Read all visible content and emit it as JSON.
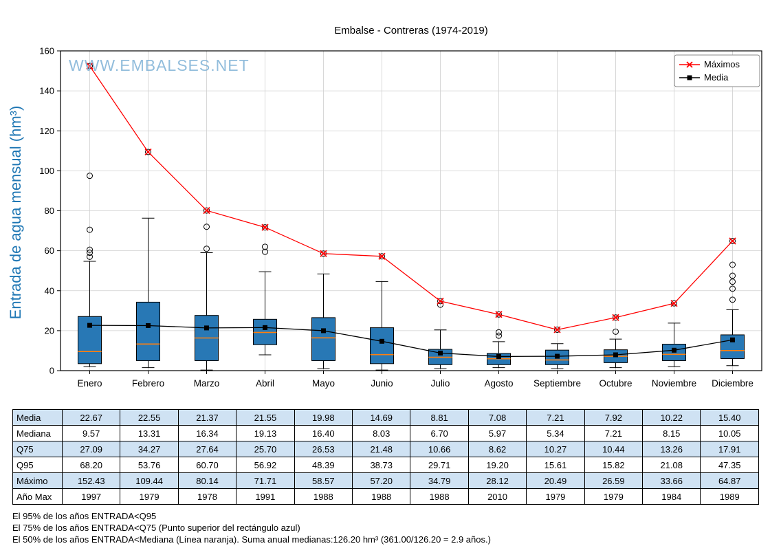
{
  "page": {
    "watermark": "WWW.EMBALSES.NET"
  },
  "chart_data": {
    "type": "boxplot",
    "title": "Embalse - Contreras (1974-2019)",
    "ylabel": "Entrada de agua mensual (hm³)",
    "xlabel": "",
    "ylim": [
      0,
      160
    ],
    "yticks": [
      0,
      20,
      40,
      60,
      80,
      100,
      120,
      140,
      160
    ],
    "grid": true,
    "legend_position": "upper right",
    "categories": [
      "Enero",
      "Febrero",
      "Marzo",
      "Abril",
      "Mayo",
      "Junio",
      "Julio",
      "Agosto",
      "Septiembre",
      "Octubre",
      "Noviembre",
      "Diciembre"
    ],
    "series": [
      {
        "name": "Máximos",
        "type": "line",
        "marker": "x",
        "color": "#ff0000",
        "values": [
          152.43,
          109.44,
          80.14,
          71.71,
          58.57,
          57.2,
          34.79,
          28.12,
          20.49,
          26.59,
          33.66,
          64.87
        ]
      },
      {
        "name": "Media",
        "type": "line",
        "marker": "square",
        "color": "#000000",
        "values": [
          22.67,
          22.55,
          21.37,
          21.55,
          19.98,
          14.69,
          8.81,
          7.08,
          7.21,
          7.92,
          10.22,
          15.4
        ]
      }
    ],
    "boxplot": {
      "box_color": "#2878b5",
      "median_color": "#ff7f0e",
      "median": [
        9.57,
        13.31,
        16.34,
        19.13,
        16.4,
        8.03,
        6.7,
        5.97,
        5.34,
        7.21,
        8.15,
        10.05
      ],
      "q3": [
        27.09,
        34.27,
        27.64,
        25.7,
        26.53,
        21.48,
        10.66,
        8.62,
        10.27,
        10.44,
        13.26,
        17.91
      ],
      "q1": [
        3.5,
        5.0,
        5.0,
        13.0,
        5.0,
        3.5,
        3.0,
        3.0,
        3.0,
        4.0,
        5.0,
        6.0
      ],
      "whisker_low": [
        2.0,
        1.5,
        0.3,
        7.9,
        1.0,
        0.3,
        1.0,
        1.5,
        1.0,
        1.5,
        2.0,
        2.5
      ],
      "whisker_high": [
        54.7,
        76.3,
        59.0,
        49.5,
        48.4,
        44.6,
        20.4,
        14.5,
        13.5,
        15.8,
        23.8,
        30.5
      ],
      "outliers": [
        [
          57.0,
          59.0,
          60.5,
          70.5,
          97.5,
          152.43
        ],
        [
          109.44
        ],
        [
          61.0,
          72.0,
          80.14
        ],
        [
          59.5,
          62.0,
          71.71
        ],
        [
          58.57
        ],
        [
          57.2
        ],
        [
          33.0,
          34.79
        ],
        [
          17.5,
          19.2,
          28.12
        ],
        [
          20.49
        ],
        [
          19.5,
          26.59
        ],
        [
          33.66
        ],
        [
          35.5,
          41.0,
          44.5,
          47.5,
          53.0,
          64.87
        ]
      ]
    }
  },
  "table": {
    "row_labels": [
      "Media",
      "Mediana",
      "Q75",
      "Q95",
      "Máximo",
      "Año Max"
    ],
    "rows": [
      [
        "22.67",
        "22.55",
        "21.37",
        "21.55",
        "19.98",
        "14.69",
        "8.81",
        "7.08",
        "7.21",
        "7.92",
        "10.22",
        "15.40"
      ],
      [
        "9.57",
        "13.31",
        "16.34",
        "19.13",
        "16.40",
        "8.03",
        "6.70",
        "5.97",
        "5.34",
        "7.21",
        "8.15",
        "10.05"
      ],
      [
        "27.09",
        "34.27",
        "27.64",
        "25.70",
        "26.53",
        "21.48",
        "10.66",
        "8.62",
        "10.27",
        "10.44",
        "13.26",
        "17.91"
      ],
      [
        "68.20",
        "53.76",
        "60.70",
        "56.92",
        "48.39",
        "38.73",
        "29.71",
        "19.20",
        "15.61",
        "15.82",
        "21.08",
        "47.35"
      ],
      [
        "152.43",
        "109.44",
        "80.14",
        "71.71",
        "58.57",
        "57.20",
        "34.79",
        "28.12",
        "20.49",
        "26.59",
        "33.66",
        "64.87"
      ],
      [
        "1997",
        "1979",
        "1978",
        "1991",
        "1988",
        "1988",
        "1988",
        "2010",
        "1979",
        "1979",
        "1984",
        "1989"
      ]
    ],
    "shaded_rows": [
      0,
      2,
      4
    ],
    "shade_color": "#cfe2f3"
  },
  "footnotes": [
    "El 95% de los años ENTRADA<Q95",
    "El 75% de los años ENTRADA<Q75 (Punto superior del rectángulo azul)",
    "El 50% de los años ENTRADA<Mediana (Línea naranja). Suma anual medianas:126.20 hm³ (361.00/126.20 = 2.9 años.)"
  ]
}
